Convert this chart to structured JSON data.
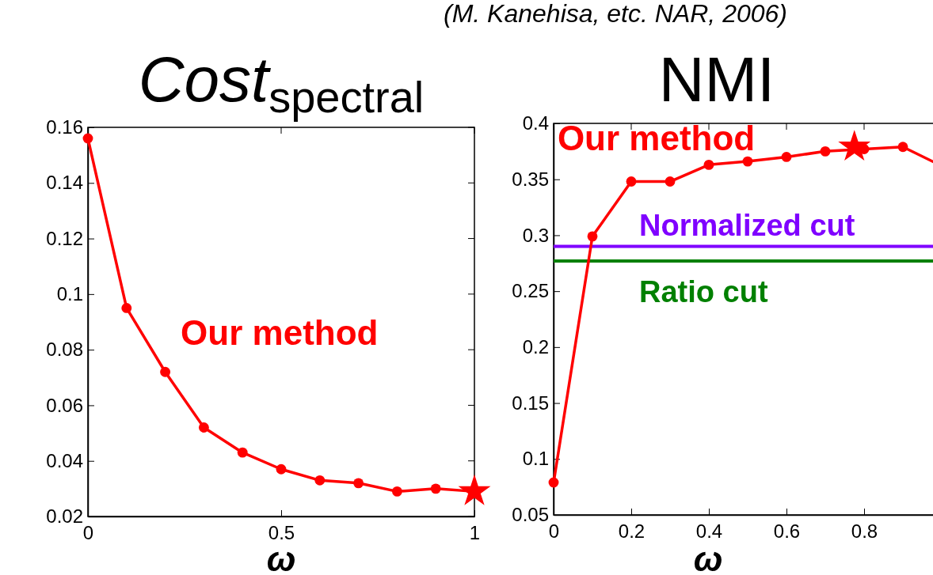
{
  "chart_data": [
    {
      "type": "line",
      "title": "Cost$_{spectral}$",
      "xlabel": "ω",
      "xlim": [
        0,
        1
      ],
      "xticks": [
        0,
        0.5,
        1
      ],
      "ylim": [
        0.02,
        0.16
      ],
      "yticks": [
        0.02,
        0.04,
        0.06,
        0.08,
        0.1,
        0.12,
        0.14,
        0.16
      ],
      "grid": false,
      "legend": false,
      "annotations": [
        "(M. Kanehisa, etc. NAR, 2006)"
      ],
      "series": [
        {
          "name": "Our method",
          "marker": "none",
          "color": "#ff0000",
          "x": [
            0,
            0.1,
            0.2,
            0.3,
            0.4,
            0.5,
            0.6,
            0.7,
            0.8,
            0.9,
            1
          ],
          "values": [
            0.156,
            0.095,
            0.072,
            0.052,
            0.043,
            0.037,
            0.033,
            0.032,
            0.029,
            0.03,
            0.029
          ]
        },
        {
          "type": "scatter",
          "marker": "circle",
          "color": "#ff0000",
          "x": [
            0,
            0.1,
            0.2,
            0.3,
            0.4,
            0.5,
            0.6,
            0.7,
            0.8,
            0.9
          ],
          "values": [
            0.156,
            0.095,
            0.072,
            0.052,
            0.043,
            0.037,
            0.033,
            0.032,
            0.029,
            0.03
          ]
        },
        {
          "type": "scatter",
          "marker": "star",
          "color": "#ff0000",
          "x": [
            1
          ],
          "values": [
            0.029
          ]
        }
      ]
    },
    {
      "type": "line",
      "title": "NMI",
      "xlabel": "ω",
      "xlim": [
        0,
        1
      ],
      "xticks": [
        0,
        0.2,
        0.4,
        0.6,
        0.8
      ],
      "ylim": [
        0.05,
        0.4
      ],
      "yticks": [
        0.05,
        0.1,
        0.15,
        0.2,
        0.25,
        0.3,
        0.35,
        0.4
      ],
      "grid": false,
      "legend": false,
      "ref_lines": [
        {
          "axis": "y",
          "value": 0.29,
          "label": "Normalized cut",
          "color": "#7f00ff"
        },
        {
          "axis": "y",
          "value": 0.277,
          "label": "Ratio cut",
          "color": "#008000"
        }
      ],
      "series": [
        {
          "name": "Our method",
          "marker": "circle",
          "color": "#ff0000",
          "x": [
            0,
            0.1,
            0.2,
            0.3,
            0.4,
            0.5,
            0.6,
            0.7,
            0.8,
            0.9,
            1
          ],
          "values": [
            0.079,
            0.299,
            0.348,
            0.348,
            0.363,
            0.366,
            0.37,
            0.375,
            0.377,
            0.379,
            0.362
          ]
        },
        {
          "type": "scatter",
          "marker": "star",
          "color": "#ff0000",
          "x": [
            0.775
          ],
          "values": [
            0.379
          ]
        }
      ]
    }
  ]
}
